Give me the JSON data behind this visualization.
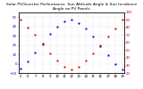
{
  "title": "Solar PV/Inverter Performance  Sun Altitude Angle & Sun Incidence Angle on PV Panels",
  "x_hours": [
    5,
    6,
    7,
    8,
    9,
    10,
    11,
    12,
    13,
    14,
    15,
    16,
    17,
    18,
    19
  ],
  "sun_altitude": [
    -5,
    2,
    12,
    22,
    32,
    40,
    45,
    47,
    44,
    38,
    29,
    19,
    9,
    0,
    -6
  ],
  "incidence_angle": [
    90,
    80,
    70,
    58,
    46,
    36,
    28,
    25,
    28,
    36,
    46,
    57,
    68,
    79,
    90
  ],
  "altitude_color": "#0000dd",
  "incidence_color": "#dd0000",
  "background_color": "#ffffff",
  "grid_color": "#aaaaaa",
  "ylim_left": [
    -10,
    55
  ],
  "ylim_right": [
    20,
    100
  ],
  "yticks_left": [
    -10,
    0,
    10,
    20,
    30,
    40,
    50
  ],
  "yticks_right": [
    20,
    30,
    40,
    50,
    60,
    70,
    80,
    90,
    100
  ],
  "xtick_labels": [
    "5",
    "6",
    "7",
    "8",
    "9",
    "10",
    "11",
    "12",
    "13",
    "14",
    "15",
    "16",
    "17",
    "18",
    "19"
  ],
  "title_fontsize": 3.2,
  "tick_fontsize": 2.8
}
